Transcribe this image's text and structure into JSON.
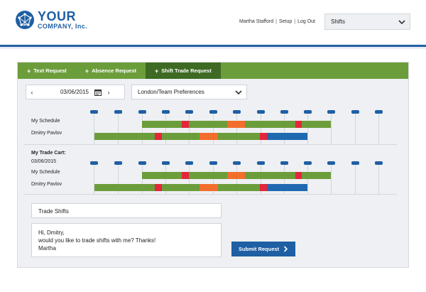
{
  "brand": {
    "line1": "YOUR",
    "line2": "COMPANY, Inc.",
    "color": "#1f5fa3"
  },
  "header": {
    "user_name": "Martha Stafford",
    "setup_label": "Setup",
    "logout_label": "Log Out",
    "separator": "|",
    "view_select": {
      "value": "Shifts"
    }
  },
  "tabs": [
    {
      "label": "Text Request",
      "active": false
    },
    {
      "label": "Absence Request",
      "active": false
    },
    {
      "label": "Shift Trade Request",
      "active": true
    }
  ],
  "controls": {
    "prev_label": "‹",
    "next_label": "›",
    "date_value": "03/06/2015",
    "location_value": "London/Team Preferences"
  },
  "schedule": {
    "rows": [
      {
        "label": "My Schedule"
      },
      {
        "label": "Dmitry Pavlov"
      }
    ]
  },
  "trade_cart": {
    "title": "My Trade Cart:",
    "date": "03/06/2015",
    "rows": [
      {
        "label": "My Schedule"
      },
      {
        "label": "Dmitry Pavlov"
      }
    ]
  },
  "form": {
    "subject_value": "Trade Shifts",
    "message_lines": [
      "Hi, Dmitry,",
      "would you like to trade shifts with me? Thanks!",
      "Martha"
    ],
    "submit_label": "Submit Request"
  },
  "colors": {
    "accent_green": "#6c9d3b",
    "tab_active": "#3e6a23",
    "shift_green": "#6c9d3b",
    "break_red": "#e3263c",
    "meeting_orange": "#f26e2c",
    "trade_blue": "#1f69b1"
  }
}
